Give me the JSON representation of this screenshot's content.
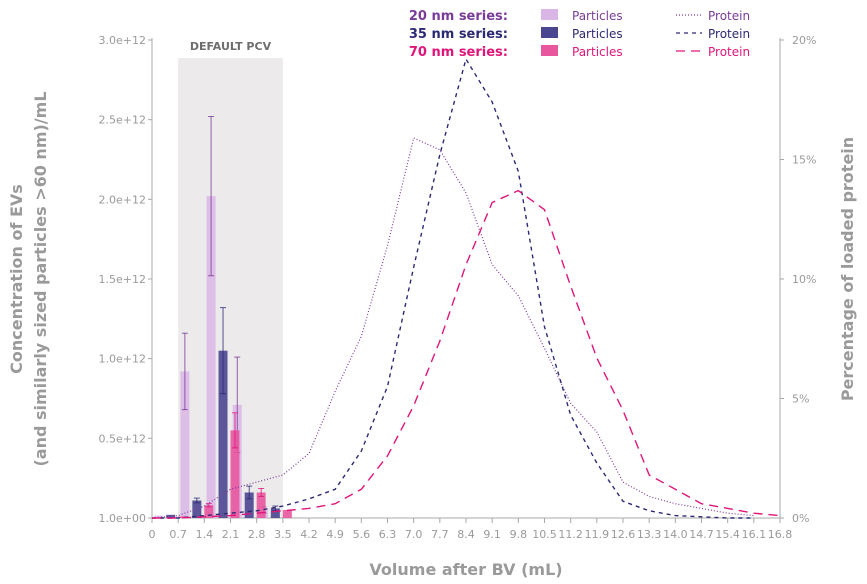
{
  "chart_data": {
    "type": "bar+line",
    "xlabel": "Volume after BV (mL)",
    "ylabel_lines": [
      "Concentration of EVs",
      "(and similarly sized particles >60 nm)/mL"
    ],
    "y2label": "Percentage of loaded protein",
    "x_ticks": [
      "0",
      "0.7",
      "1.4",
      "2.1",
      "2.8",
      "3.5",
      "4.2",
      "4.9",
      "5.6",
      "6.3",
      "7.0",
      "7.7",
      "8.4",
      "9.1",
      "9.8",
      "10.5",
      "11.2",
      "11.9",
      "12.6",
      "13.3",
      "14.0",
      "14.7",
      "15.4",
      "16.1",
      "16.8"
    ],
    "xlim": [
      0,
      16.8
    ],
    "y_ticks": [
      "1.0e+00",
      "0.5e+12",
      "1.0e+12",
      "1.5e+12",
      "2.0e+12",
      "2.5e+12",
      "3.0e+12"
    ],
    "ylim": [
      0,
      3000000000000.0
    ],
    "y2_ticks": [
      "0%",
      "5%",
      "10%",
      "15%",
      "20%"
    ],
    "y2lim": [
      0,
      20
    ],
    "band": {
      "label": "DEFAULT PCV",
      "x_start": 0.7,
      "x_end": 3.5
    },
    "legend": [
      {
        "series_label": "20 nm series:",
        "color": "#7b3b9a",
        "particles_label": "Particles",
        "particles_color": "#d9b6e6",
        "protein_label": "Protein",
        "protein_dash": "1,2"
      },
      {
        "series_label": "35 nm series:",
        "color": "#2c2a75",
        "particles_label": "Particles",
        "particles_color": "#4b4690",
        "protein_label": "Protein",
        "protein_dash": "4,4"
      },
      {
        "series_label": "70 nm series:",
        "color": "#e0157a",
        "particles_label": "Particles",
        "particles_color": "#e8569e",
        "protein_label": "Protein",
        "protein_dash": "9,6"
      }
    ],
    "bars": [
      {
        "series": 0,
        "x": 0.18,
        "value": 15000000000.0,
        "err": 0
      },
      {
        "series": 0,
        "x": 0.88,
        "value": 920000000000.0,
        "err": 240000000000.0
      },
      {
        "series": 0,
        "x": 1.58,
        "value": 2020000000000.0,
        "err": 500000000000.0
      },
      {
        "series": 0,
        "x": 2.28,
        "value": 710000000000.0,
        "err": 300000000000.0
      },
      {
        "series": 0,
        "x": 2.98,
        "value": 50000000000.0,
        "err": 20000000000.0
      },
      {
        "series": 1,
        "x": 0.5,
        "value": 20000000000.0,
        "err": 0
      },
      {
        "series": 1,
        "x": 1.2,
        "value": 110000000000.0,
        "err": 15000000000.0
      },
      {
        "series": 1,
        "x": 1.9,
        "value": 1050000000000.0,
        "err": 270000000000.0
      },
      {
        "series": 1,
        "x": 2.6,
        "value": 160000000000.0,
        "err": 40000000000.0
      },
      {
        "series": 1,
        "x": 3.3,
        "value": 60000000000.0,
        "err": 15000000000.0
      },
      {
        "series": 2,
        "x": 0.82,
        "value": 10000000000.0,
        "err": 0
      },
      {
        "series": 2,
        "x": 1.52,
        "value": 80000000000.0,
        "err": 10000000000.0
      },
      {
        "series": 2,
        "x": 2.22,
        "value": 550000000000.0,
        "err": 110000000000.0
      },
      {
        "series": 2,
        "x": 2.92,
        "value": 160000000000.0,
        "err": 25000000000.0
      },
      {
        "series": 2,
        "x": 3.62,
        "value": 50000000000.0,
        "err": 0
      }
    ],
    "protein": [
      {
        "series": 0,
        "x": [
          0,
          0.7,
          1.4,
          2.1,
          2.8,
          3.5,
          4.2,
          4.9,
          5.6,
          6.3,
          7.0,
          7.7,
          8.4,
          9.1,
          9.8,
          10.5,
          11.2,
          11.9,
          12.6,
          13.3,
          14.0,
          14.7,
          15.4,
          16.1
        ],
        "values": [
          0,
          0.1,
          0.5,
          1.2,
          1.5,
          1.8,
          2.7,
          5.3,
          7.6,
          11.4,
          15.9,
          15.4,
          13.6,
          10.6,
          9.3,
          7.1,
          4.8,
          3.6,
          1.5,
          0.9,
          0.6,
          0.4,
          0.2,
          0.1
        ]
      },
      {
        "series": 1,
        "x": [
          0,
          0.7,
          1.4,
          2.1,
          2.8,
          3.5,
          4.2,
          4.9,
          5.6,
          6.3,
          7.0,
          7.7,
          8.4,
          9.1,
          9.8,
          10.5,
          11.2,
          11.9,
          12.6,
          13.3,
          14.0,
          14.7,
          15.4,
          16.1
        ],
        "values": [
          0,
          0,
          0.1,
          0.2,
          0.3,
          0.5,
          0.8,
          1.2,
          2.8,
          5.5,
          10.5,
          15.2,
          19.2,
          17.4,
          14.5,
          8.0,
          4.3,
          2.3,
          0.7,
          0.3,
          0.1,
          0.05,
          0,
          0
        ]
      },
      {
        "series": 2,
        "x": [
          0,
          0.7,
          1.4,
          2.1,
          2.8,
          3.5,
          4.2,
          4.9,
          5.6,
          6.3,
          7.0,
          7.7,
          8.4,
          9.1,
          9.8,
          10.5,
          11.2,
          11.9,
          12.6,
          13.3,
          14.0,
          14.7,
          15.4,
          16.1,
          16.8
        ],
        "values": [
          0,
          0,
          0.05,
          0.1,
          0.2,
          0.3,
          0.4,
          0.6,
          1.2,
          2.6,
          4.7,
          7.4,
          10.6,
          13.2,
          13.7,
          12.9,
          9.7,
          6.7,
          4.5,
          1.8,
          1.2,
          0.6,
          0.4,
          0.2,
          0.1
        ]
      }
    ]
  }
}
